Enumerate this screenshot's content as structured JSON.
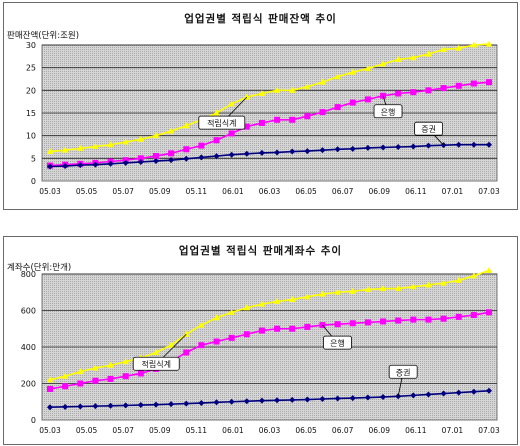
{
  "charts": [
    {
      "title": "업업권별 적립식 판매잔액 추이",
      "ylabel": "판매잔액(단위:조원)"
    },
    {
      "title": "업업권별 적립식 판매계좌수 추이",
      "ylabel": "계좌수(단위:만개)"
    }
  ],
  "chart_data": [
    {
      "type": "line",
      "title": "업업권별 적립식 판매잔액 추이",
      "ylabel": "판매잔액(단위:조원)",
      "xlabel": "",
      "ylim": [
        0,
        30
      ],
      "yticks": [
        0,
        5,
        10,
        15,
        20,
        25,
        30
      ],
      "xticks": [
        "05.03",
        "05.05",
        "05.07",
        "05.09",
        "05.11",
        "06.01",
        "06.03",
        "06.05",
        "06.07",
        "06.09",
        "06.11",
        "07.01",
        "07.03"
      ],
      "grid": true,
      "series": [
        {
          "name": "적립식계",
          "color": "#ffff00",
          "marker": "triangle",
          "values": [
            6.5,
            6.8,
            7.2,
            7.6,
            8.0,
            8.6,
            9.2,
            10.0,
            11.0,
            12.2,
            13.5,
            15.0,
            17.0,
            18.5,
            19.3,
            20.0,
            20.0,
            20.8,
            21.8,
            23.0,
            24.0,
            24.8,
            25.8,
            26.8,
            27.2,
            28.0,
            29.0,
            29.3,
            30.0,
            30.2
          ]
        },
        {
          "name": "은행",
          "color": "#ff00ff",
          "marker": "square",
          "values": [
            3.4,
            3.6,
            3.8,
            4.0,
            4.3,
            4.6,
            5.0,
            5.5,
            6.1,
            7.0,
            7.8,
            9.0,
            10.5,
            12.0,
            12.8,
            13.5,
            13.5,
            14.3,
            15.2,
            16.3,
            17.3,
            18.0,
            18.8,
            19.3,
            19.6,
            20.0,
            20.5,
            21.0,
            21.5,
            21.8
          ]
        },
        {
          "name": "증권",
          "color": "#000080",
          "marker": "diamond",
          "values": [
            3.2,
            3.3,
            3.5,
            3.6,
            3.8,
            4.0,
            4.2,
            4.4,
            4.6,
            4.9,
            5.2,
            5.5,
            5.8,
            6.0,
            6.2,
            6.3,
            6.5,
            6.6,
            6.8,
            7.0,
            7.1,
            7.3,
            7.4,
            7.5,
            7.6,
            7.8,
            7.9,
            8.0,
            8.0,
            8.0
          ]
        }
      ]
    },
    {
      "type": "line",
      "title": "업업권별 적립식 판매계좌수 추이",
      "ylabel": "계좌수(단위:만개)",
      "xlabel": "",
      "ylim": [
        0,
        800
      ],
      "yticks": [
        0,
        200,
        400,
        600,
        800
      ],
      "xticks": [
        "05.03",
        "05.05",
        "05.07",
        "05.09",
        "05.11",
        "06.01",
        "06.03",
        "06.05",
        "06.07",
        "06.09",
        "06.11",
        "07.01",
        "07.03"
      ],
      "grid": true,
      "series": [
        {
          "name": "적립식계",
          "color": "#ffff00",
          "marker": "triangle",
          "values": [
            220,
            240,
            265,
            285,
            300,
            320,
            340,
            370,
            410,
            470,
            520,
            560,
            590,
            615,
            635,
            650,
            660,
            675,
            690,
            700,
            705,
            715,
            720,
            720,
            730,
            740,
            750,
            765,
            790,
            820
          ]
        },
        {
          "name": "은행",
          "color": "#ff00ff",
          "marker": "square",
          "values": [
            170,
            185,
            200,
            215,
            225,
            240,
            255,
            280,
            320,
            370,
            410,
            430,
            450,
            470,
            490,
            500,
            500,
            510,
            520,
            525,
            530,
            535,
            540,
            545,
            550,
            550,
            555,
            565,
            575,
            590
          ]
        },
        {
          "name": "증권",
          "color": "#000080",
          "marker": "diamond",
          "values": [
            70,
            72,
            74,
            76,
            78,
            80,
            82,
            84,
            87,
            90,
            93,
            97,
            100,
            103,
            106,
            108,
            110,
            112,
            115,
            118,
            120,
            123,
            126,
            130,
            135,
            140,
            145,
            150,
            155,
            160
          ]
        }
      ]
    }
  ]
}
